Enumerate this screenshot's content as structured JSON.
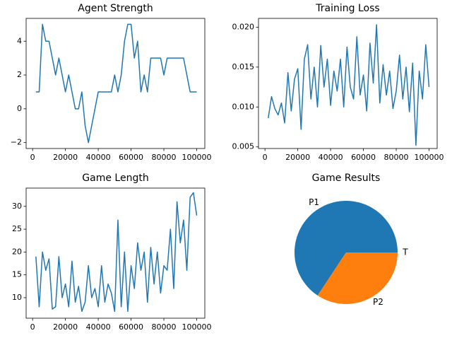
{
  "chart_data": [
    {
      "type": "line",
      "title": "Agent Strength",
      "x": [
        2000,
        4000,
        6000,
        8000,
        10000,
        12000,
        14000,
        16000,
        18000,
        20000,
        22000,
        24000,
        26000,
        28000,
        30000,
        32000,
        34000,
        36000,
        38000,
        40000,
        42000,
        44000,
        46000,
        48000,
        50000,
        52000,
        54000,
        56000,
        58000,
        60000,
        62000,
        64000,
        66000,
        68000,
        70000,
        72000,
        74000,
        76000,
        78000,
        80000,
        82000,
        84000,
        86000,
        88000,
        90000,
        92000,
        94000,
        96000,
        98000,
        100000
      ],
      "values": [
        1,
        1,
        5,
        4,
        4,
        3,
        2,
        3,
        2,
        1,
        2,
        1,
        0,
        0,
        1,
        -1,
        -2,
        -1,
        0,
        1,
        1,
        1,
        1,
        1,
        2,
        1,
        2,
        4,
        5,
        5,
        3,
        4,
        1,
        2,
        1,
        3,
        3,
        3,
        3,
        2,
        3,
        3,
        3,
        3,
        3,
        3,
        2,
        1,
        1,
        1
      ],
      "color": "#1f77b4",
      "xlim": [
        -3950,
        104950
      ],
      "xticks": [
        0,
        20000,
        40000,
        60000,
        80000,
        100000
      ],
      "ylim": [
        -2.35,
        5.35
      ],
      "yticks": [
        {
          "value": -2,
          "label": "−2"
        },
        0,
        2,
        4
      ]
    },
    {
      "type": "line",
      "title": "Training Loss",
      "x": [
        2000,
        4000,
        6000,
        8000,
        10000,
        12000,
        14000,
        16000,
        18000,
        20000,
        22000,
        24000,
        26000,
        28000,
        30000,
        32000,
        34000,
        36000,
        38000,
        40000,
        42000,
        44000,
        46000,
        48000,
        50000,
        52000,
        54000,
        56000,
        58000,
        60000,
        62000,
        64000,
        66000,
        68000,
        70000,
        72000,
        74000,
        76000,
        78000,
        80000,
        82000,
        84000,
        86000,
        88000,
        90000,
        92000,
        94000,
        96000,
        98000,
        100000
      ],
      "values": [
        0.0086,
        0.0113,
        0.0098,
        0.009,
        0.0105,
        0.008,
        0.0143,
        0.0095,
        0.0135,
        0.0148,
        0.0072,
        0.016,
        0.0178,
        0.011,
        0.015,
        0.01,
        0.0177,
        0.0125,
        0.016,
        0.0102,
        0.0145,
        0.012,
        0.016,
        0.01,
        0.0175,
        0.0125,
        0.011,
        0.0188,
        0.0115,
        0.014,
        0.0095,
        0.018,
        0.013,
        0.0203,
        0.0105,
        0.0153,
        0.0115,
        0.0145,
        0.0098,
        0.012,
        0.0165,
        0.011,
        0.015,
        0.0094,
        0.0155,
        0.0052,
        0.0145,
        0.011,
        0.0178,
        0.0125
      ],
      "color": "#1f77b4",
      "xlim": [
        -3950,
        104950
      ],
      "xticks": [
        0,
        20000,
        40000,
        60000,
        80000,
        100000
      ],
      "ylim": [
        0.0048,
        0.0211
      ],
      "yticks": [
        0.005,
        {
          "value": 0.01,
          "label": "0.010"
        },
        0.015,
        {
          "value": 0.02,
          "label": "0.020"
        }
      ]
    },
    {
      "type": "line",
      "title": "Game Length",
      "x": [
        2000,
        4000,
        6000,
        8000,
        10000,
        12000,
        14000,
        16000,
        18000,
        20000,
        22000,
        24000,
        26000,
        28000,
        30000,
        32000,
        34000,
        36000,
        38000,
        40000,
        42000,
        44000,
        46000,
        48000,
        50000,
        52000,
        54000,
        56000,
        58000,
        60000,
        62000,
        64000,
        66000,
        68000,
        70000,
        72000,
        74000,
        76000,
        78000,
        80000,
        82000,
        84000,
        86000,
        88000,
        90000,
        92000,
        94000,
        96000,
        98000,
        100000
      ],
      "values": [
        19,
        8,
        20,
        16,
        18.5,
        7.5,
        8,
        19,
        10,
        13,
        8,
        18,
        9,
        12.5,
        7,
        9,
        17,
        10,
        12,
        8,
        17,
        9,
        13,
        11,
        7,
        27,
        8,
        20,
        7,
        17,
        12,
        22,
        16,
        20,
        9,
        21,
        13,
        20,
        11,
        17,
        16,
        25,
        12,
        31,
        22,
        27,
        16,
        32,
        33,
        28
      ],
      "color": "#1f77b4",
      "xlim": [
        -3950,
        104950
      ],
      "xticks": [
        0,
        20000,
        40000,
        60000,
        80000,
        100000
      ],
      "ylim": [
        5.5,
        34
      ],
      "yticks": [
        10,
        15,
        20,
        25,
        30
      ]
    },
    {
      "type": "pie",
      "title": "Game Results",
      "categories": [
        "P1",
        "P2",
        "T"
      ],
      "values": [
        65.7,
        34.3,
        0
      ],
      "colors": [
        "#1f77b4",
        "#ff7f0e",
        "#2ca02c"
      ]
    }
  ]
}
